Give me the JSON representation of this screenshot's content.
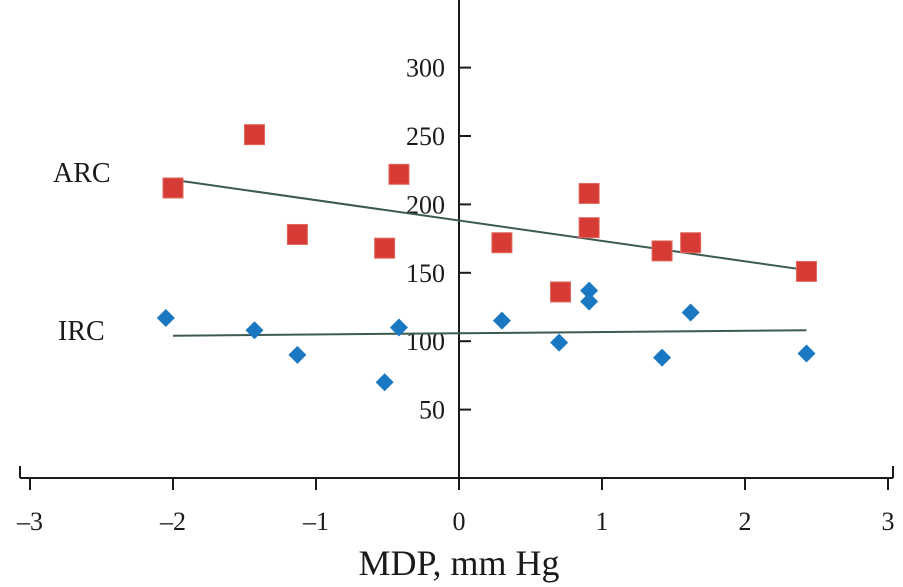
{
  "chart_data": {
    "type": "scatter",
    "title": "",
    "xlabel": "MDP, mm Hg",
    "ylabel": "",
    "xlim": [
      -3,
      3
    ],
    "ylim": [
      0,
      350
    ],
    "xticks": [
      -3,
      -2,
      -1,
      0,
      1,
      2,
      3
    ],
    "xtick_labels": [
      "–3",
      "–2",
      "–1",
      "0",
      "1",
      "2",
      "3"
    ],
    "yticks": [
      50,
      100,
      150,
      200,
      250,
      300
    ],
    "ytick_labels": [
      "50",
      "100",
      "150",
      "200",
      "250",
      "300"
    ],
    "grid": false,
    "series": [
      {
        "name": "ARC",
        "marker": "square",
        "color": "#d63b35",
        "x": [
          -2.0,
          -1.43,
          -1.13,
          -0.52,
          -0.42,
          0.3,
          0.71,
          0.91,
          0.91,
          1.42,
          1.62,
          2.43
        ],
        "y": [
          212,
          251,
          178,
          168,
          222,
          172,
          136,
          208,
          183,
          166,
          172,
          151
        ],
        "trend": {
          "x": [
            -2.0,
            2.43
          ],
          "y": [
            218,
            152
          ]
        }
      },
      {
        "name": "IRC",
        "marker": "diamond",
        "color": "#1a78c2",
        "x": [
          -2.05,
          -1.43,
          -1.13,
          -0.52,
          -0.42,
          0.3,
          0.7,
          0.91,
          0.91,
          1.42,
          1.62,
          2.43
        ],
        "y": [
          117,
          108,
          90,
          70,
          110,
          115,
          99,
          137,
          129,
          88,
          121,
          91
        ],
        "trend": {
          "x": [
            -2.0,
            2.43
          ],
          "y": [
            104,
            108
          ]
        }
      }
    ],
    "trend_color": "#3d5a50"
  }
}
